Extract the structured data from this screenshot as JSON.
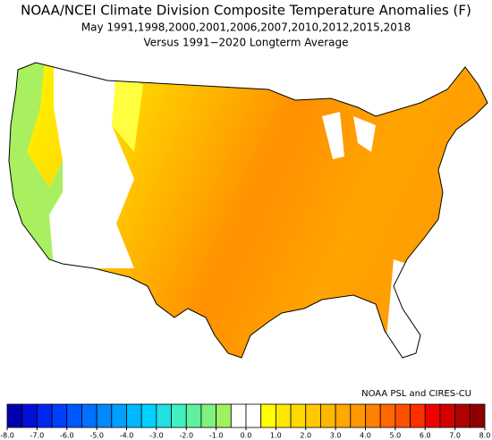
{
  "title": "NOAA/NCEI Climate Division Composite Temperature Anomalies (F)",
  "subtitle": "May  1991,1998,2000,2001,2006,2007,2010,2012,2015,2018",
  "note": "Versus 1991−2020 Longterm Average",
  "credit": "NOAA PSL and CIRES-CU",
  "colorbar": {
    "bins": [
      -8,
      -7.5,
      -7,
      -6.5,
      -6,
      -5.5,
      -5,
      -4.5,
      -4,
      -3.5,
      -3,
      -2.5,
      -2,
      -1.5,
      -1,
      -0.5,
      0,
      0.5,
      1,
      1.5,
      2,
      2.5,
      3,
      3.5,
      4,
      4.5,
      5,
      5.5,
      6,
      6.5,
      7,
      7.5,
      8
    ],
    "colors": [
      "#0000b0",
      "#0010d8",
      "#0028f0",
      "#0040ff",
      "#0058ff",
      "#0070ff",
      "#0088ff",
      "#00a0ff",
      "#00b8ff",
      "#00d0ff",
      "#20e0e0",
      "#40f0c0",
      "#60f0a0",
      "#80f080",
      "#a0f060",
      "#ffffff",
      "#ffffff",
      "#ffff00",
      "#ffe800",
      "#ffd800",
      "#ffc800",
      "#ffb800",
      "#ffa800",
      "#ff9800",
      "#ff8000",
      "#ff6800",
      "#ff5000",
      "#ff3000",
      "#f00000",
      "#d00000",
      "#b00000",
      "#900000"
    ],
    "ticks": [
      {
        "value": -8,
        "label": "-8.0"
      },
      {
        "value": -7,
        "label": "-7.0"
      },
      {
        "value": -6,
        "label": "-6.0"
      },
      {
        "value": -5,
        "label": "-5.0"
      },
      {
        "value": -4,
        "label": "-4.0"
      },
      {
        "value": -3,
        "label": "-3.0"
      },
      {
        "value": -2,
        "label": "-2.0"
      },
      {
        "value": -1,
        "label": "-1.0"
      },
      {
        "value": 0,
        "label": "0.0"
      },
      {
        "value": 1,
        "label": "1.0"
      },
      {
        "value": 2,
        "label": "2.0"
      },
      {
        "value": 3,
        "label": "3.0"
      },
      {
        "value": 4,
        "label": "4.0"
      },
      {
        "value": 5,
        "label": "5.0"
      },
      {
        "value": 6,
        "label": "6.0"
      },
      {
        "value": 7,
        "label": "7.0"
      },
      {
        "value": 8,
        "label": "8.0"
      }
    ]
  }
}
